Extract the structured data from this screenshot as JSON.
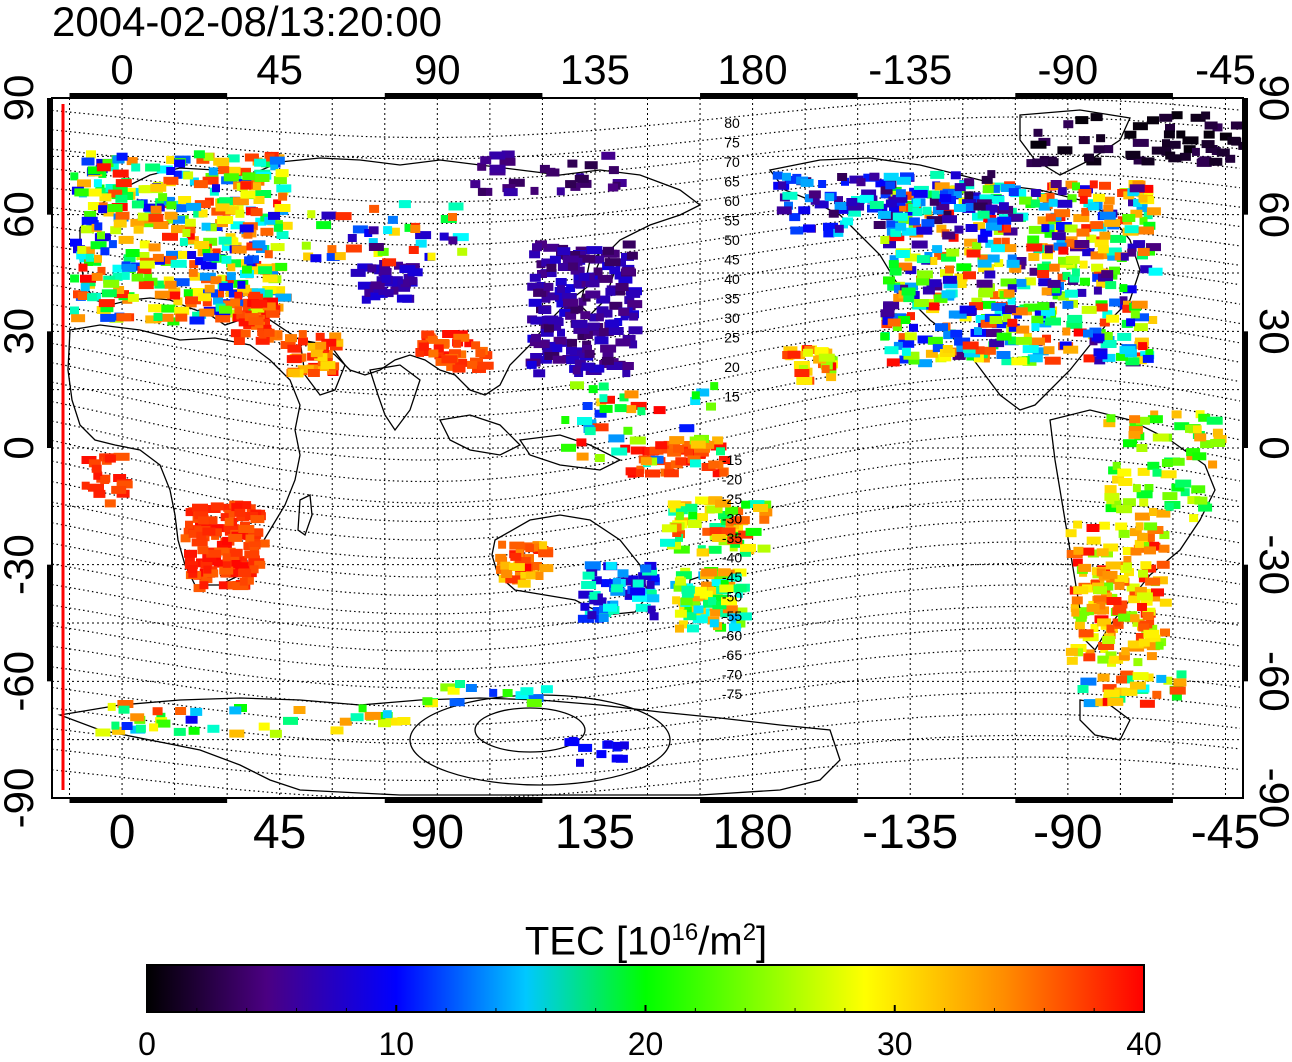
{
  "title": "2004-02-08/13:20:00",
  "map": {
    "top_longitude_labels": [
      "0",
      "45",
      "90",
      "135",
      "180",
      "-135",
      "-90",
      "-45"
    ],
    "bottom_longitude_labels": [
      "0",
      "45",
      "90",
      "135",
      "180",
      "-135",
      "-90",
      "-45"
    ],
    "left_latitude_labels": [
      "90",
      "60",
      "30",
      "0",
      "-30",
      "-60",
      "-90"
    ],
    "right_latitude_labels": [
      "90",
      "60",
      "30",
      "0",
      "-30",
      "-60",
      "-90"
    ],
    "geomagnetic_contour_labels_north": [
      "80",
      "75",
      "70",
      "65",
      "60",
      "55",
      "50",
      "45",
      "40",
      "35",
      "30",
      "25",
      "20",
      "15"
    ],
    "geomagnetic_contour_labels_south": [
      "-15",
      "-20",
      "-25",
      "-30",
      "-35",
      "-40",
      "-45",
      "-50",
      "-55",
      "-60",
      "-65",
      "-70",
      "-75"
    ],
    "grid": "dotted"
  },
  "colorbar": {
    "label_prefix": "TEC  [10",
    "label_exp1": "16",
    "label_mid": "/m",
    "label_exp2": "2",
    "label_suffix": "]",
    "tick_labels": [
      "0",
      "10",
      "20",
      "30",
      "40"
    ],
    "range": [
      0,
      40
    ],
    "colors": [
      "#000000",
      "#4b0082",
      "#0000ff",
      "#00ffff",
      "#00ff00",
      "#ffff00",
      "#ff8c00",
      "#ff0000"
    ]
  }
}
